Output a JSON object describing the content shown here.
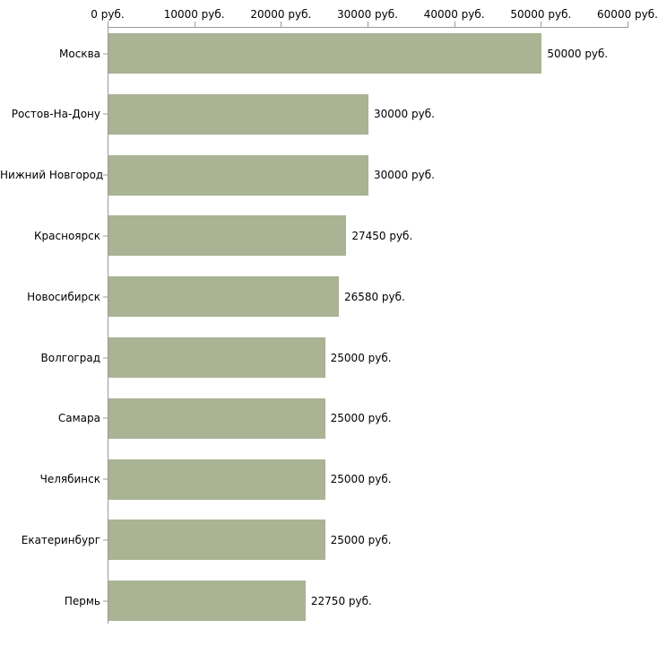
{
  "chart_data": {
    "type": "bar",
    "orientation": "horizontal",
    "title": "",
    "xlabel": "",
    "ylabel": "",
    "categories": [
      "Москва",
      "Ростов-На-Дону",
      "Нижний Новгород",
      "Красноярск",
      "Новосибирск",
      "Волгоград",
      "Самара",
      "Челябинск",
      "Екатеринбург",
      "Пермь"
    ],
    "values": [
      50000,
      30000,
      30000,
      27450,
      26580,
      25000,
      25000,
      25000,
      25000,
      22750
    ],
    "value_labels": [
      "50000 руб.",
      "30000 руб.",
      "30000 руб.",
      "27450 руб.",
      "26580 руб.",
      "25000 руб.",
      "25000 руб.",
      "25000 руб.",
      "25000 руб.",
      "22750 руб."
    ],
    "xlim": [
      0,
      60000
    ],
    "x_ticks": [
      0,
      10000,
      20000,
      30000,
      40000,
      50000,
      60000
    ],
    "x_tick_labels": [
      "0 руб.",
      "10000 руб.",
      "20000 руб.",
      "30000 руб.",
      "40000 руб.",
      "50000 руб.",
      "60000 руб."
    ],
    "bar_color": "#aab394",
    "axis_color": "#999999",
    "background": "#ffffff",
    "grid": false,
    "legend": false,
    "x_axis_position": "top"
  }
}
